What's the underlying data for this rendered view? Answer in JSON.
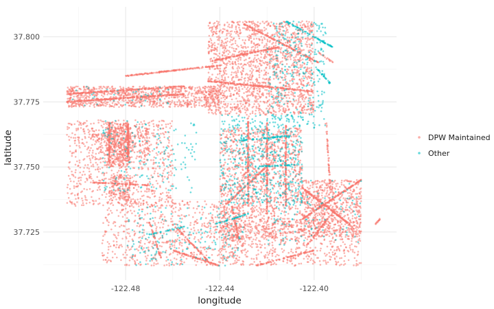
{
  "chart_data": {
    "type": "scatter",
    "xlabel": "longitude",
    "ylabel": "latitude",
    "xlim": [
      -122.515,
      -122.365
    ],
    "ylim": [
      37.7065,
      37.8115
    ],
    "x_ticks": [
      -122.48,
      -122.44,
      -122.4
    ],
    "x_tick_labels": [
      "-122.48",
      "-122.44",
      "-122.40"
    ],
    "y_ticks": [
      37.725,
      37.75,
      37.775,
      37.8
    ],
    "y_tick_labels": [
      "37.725",
      "37.750",
      "37.775",
      "37.800"
    ],
    "grid": true,
    "legend_position": "right",
    "legend": [
      {
        "label": "DPW Maintained",
        "color": "#F8766D"
      },
      {
        "label": "Other",
        "color": "#00BFC4"
      }
    ],
    "series": [
      {
        "name": "DPW Maintained",
        "color": "#F8766D",
        "clusters": [
          {
            "x": [
              -122.505,
              -122.44
            ],
            "y": [
              37.773,
              37.781
            ],
            "n": 900
          },
          {
            "x": [
              -122.445,
              -122.4
            ],
            "y": [
              37.77,
              37.806
            ],
            "n": 1700
          },
          {
            "x": [
              -122.505,
              -122.46
            ],
            "y": [
              37.735,
              37.768
            ],
            "n": 800
          },
          {
            "x": [
              -122.488,
              -122.478
            ],
            "y": [
              37.75,
              37.767
            ],
            "n": 350
          },
          {
            "x": [
              -122.487,
              -122.478
            ],
            "y": [
              37.737,
              37.747
            ],
            "n": 150
          },
          {
            "x": [
              -122.44,
              -122.405
            ],
            "y": [
              37.722,
              37.765
            ],
            "n": 1300
          },
          {
            "x": [
              -122.405,
              -122.38
            ],
            "y": [
              37.723,
              37.745
            ],
            "n": 700
          },
          {
            "x": [
              -122.49,
              -122.43
            ],
            "y": [
              37.712,
              37.737
            ],
            "n": 700
          },
          {
            "x": [
              -122.44,
              -122.38
            ],
            "y": [
              37.712,
              37.73
            ],
            "n": 600
          },
          {
            "x": [
              -122.495,
              -122.47
            ],
            "y": [
              37.755,
              37.765
            ],
            "n": 200
          }
        ],
        "lines": [
          {
            "from": [
              -122.505,
              37.775
            ],
            "to": [
              -122.455,
              37.778
            ],
            "n": 260
          },
          {
            "from": [
              -122.505,
              37.778
            ],
            "to": [
              -122.455,
              37.781
            ],
            "n": 200
          },
          {
            "from": [
              -122.48,
              37.785
            ],
            "to": [
              -122.44,
              37.789
            ],
            "n": 180
          },
          {
            "from": [
              -122.445,
              37.783
            ],
            "to": [
              -122.4,
              37.779
            ],
            "n": 220
          },
          {
            "from": [
              -122.442,
              37.791
            ],
            "to": [
              -122.415,
              37.796
            ],
            "n": 160
          },
          {
            "from": [
              -122.43,
              37.805
            ],
            "to": [
              -122.398,
              37.79
            ],
            "n": 160
          },
          {
            "from": [
              -122.487,
              37.752
            ],
            "to": [
              -122.487,
              37.767
            ],
            "n": 100
          },
          {
            "from": [
              -122.479,
              37.752
            ],
            "to": [
              -122.479,
              37.767
            ],
            "n": 100
          },
          {
            "from": [
              -122.494,
              37.744
            ],
            "to": [
              -122.47,
              37.743
            ],
            "n": 90
          },
          {
            "from": [
              -122.42,
              37.767
            ],
            "to": [
              -122.42,
              37.732
            ],
            "n": 140
          },
          {
            "from": [
              -122.428,
              37.77
            ],
            "to": [
              -122.428,
              37.735
            ],
            "n": 140
          },
          {
            "from": [
              -122.412,
              37.766
            ],
            "to": [
              -122.412,
              37.735
            ],
            "n": 120
          },
          {
            "from": [
              -122.438,
              37.735
            ],
            "to": [
              -122.418,
              37.752
            ],
            "n": 100
          },
          {
            "from": [
              -122.405,
              37.73
            ],
            "to": [
              -122.38,
              37.745
            ],
            "n": 160
          },
          {
            "from": [
              -122.405,
              37.742
            ],
            "to": [
              -122.385,
              37.728
            ],
            "n": 160
          },
          {
            "from": [
              -122.46,
              37.718
            ],
            "to": [
              -122.44,
              37.712
            ],
            "n": 110
          },
          {
            "from": [
              -122.425,
              37.712
            ],
            "to": [
              -122.4,
              37.718
            ],
            "n": 90
          },
          {
            "from": [
              -122.46,
              37.728
            ],
            "to": [
              -122.445,
              37.714
            ],
            "n": 80
          },
          {
            "from": [
              -122.403,
              37.72
            ],
            "to": [
              -122.39,
              37.735
            ],
            "n": 70
          },
          {
            "from": [
              -122.435,
              37.735
            ],
            "to": [
              -122.432,
              37.722
            ],
            "n": 60
          },
          {
            "from": [
              -122.47,
              37.729
            ],
            "to": [
              -122.465,
              37.715
            ],
            "n": 50
          },
          {
            "from": [
              -122.395,
              37.767
            ],
            "to": [
              -122.393,
              37.74
            ],
            "n": 60
          },
          {
            "from": [
              -122.398,
              37.794
            ],
            "to": [
              -122.392,
              37.79
            ],
            "n": 20
          },
          {
            "from": [
              -122.374,
              37.728
            ],
            "to": [
              -122.372,
              37.73
            ],
            "n": 15
          }
        ]
      },
      {
        "name": "Other",
        "color": "#00BFC4",
        "clusters": [
          {
            "x": [
              -122.44,
              -122.405
            ],
            "y": [
              37.735,
              37.77
            ],
            "n": 500
          },
          {
            "x": [
              -122.42,
              -122.395
            ],
            "y": [
              37.765,
              37.806
            ],
            "n": 280
          },
          {
            "x": [
              -122.49,
              -122.45
            ],
            "y": [
              37.74,
              37.768
            ],
            "n": 160
          },
          {
            "x": [
              -122.48,
              -122.43
            ],
            "y": [
              37.712,
              37.735
            ],
            "n": 170
          },
          {
            "x": [
              -122.42,
              -122.38
            ],
            "y": [
              37.72,
              37.745
            ],
            "n": 110
          },
          {
            "x": [
              -122.505,
              -122.46
            ],
            "y": [
              37.773,
              37.781
            ],
            "n": 35
          }
        ],
        "lines": [
          {
            "from": [
              -122.412,
              37.806
            ],
            "to": [
              -122.392,
              37.796
            ],
            "n": 70
          },
          {
            "from": [
              -122.4,
              37.789
            ],
            "to": [
              -122.393,
              37.782
            ],
            "n": 30
          },
          {
            "from": [
              -122.433,
              37.76
            ],
            "to": [
              -122.41,
              37.762
            ],
            "n": 60
          },
          {
            "from": [
              -122.425,
              37.75
            ],
            "to": [
              -122.405,
              37.751
            ],
            "n": 40
          },
          {
            "from": [
              -122.442,
              37.728
            ],
            "to": [
              -122.428,
              37.732
            ],
            "n": 40
          },
          {
            "from": [
              -122.47,
              37.724
            ],
            "to": [
              -122.455,
              37.727
            ],
            "n": 30
          }
        ]
      }
    ]
  }
}
